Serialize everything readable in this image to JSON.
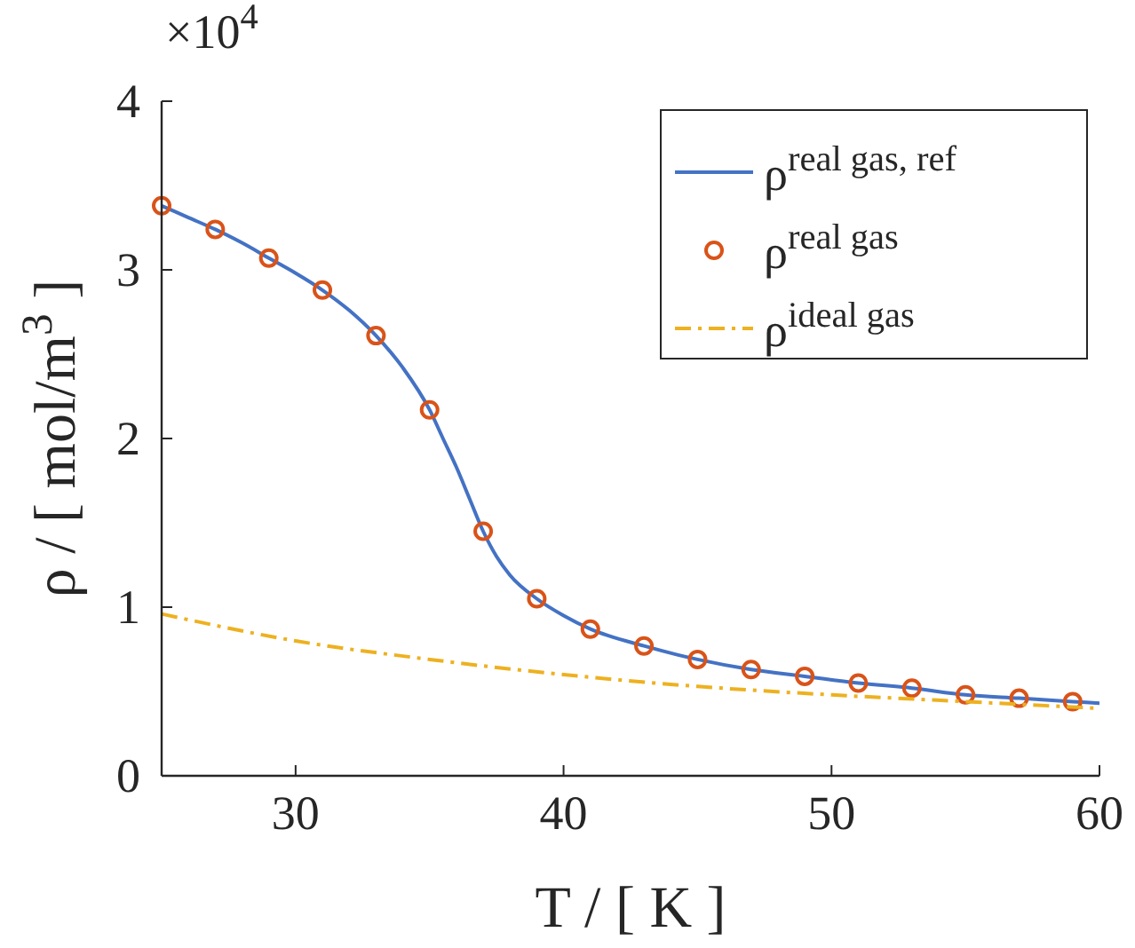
{
  "chart_data": {
    "type": "line",
    "xlabel": "T / [ K ]",
    "ylabel": "ρ / [ mol/m$^{3}$ ]",
    "annotations": [
      "×10$^{4}$"
    ],
    "xlim": [
      25,
      60
    ],
    "xticks": [
      30,
      40,
      50,
      60
    ],
    "ylim": [
      0,
      4
    ],
    "yticks": [
      0,
      1,
      2,
      3,
      4
    ],
    "grid": false,
    "legend": "top right",
    "series": [
      {
        "name": "ρ$^{real gas, ref}$",
        "color": "#4472c4",
        "line_style": "solid",
        "x": [
          25,
          26,
          27,
          28,
          29,
          30,
          31,
          32,
          33,
          34,
          35,
          35.5,
          36,
          36.5,
          37,
          37.5,
          38,
          39,
          40,
          41,
          43,
          45,
          47,
          49,
          51,
          53,
          55,
          57,
          59,
          60
        ],
        "values": [
          3.38,
          3.31,
          3.24,
          3.16,
          3.07,
          2.98,
          2.88,
          2.76,
          2.61,
          2.42,
          2.17,
          2.0,
          1.83,
          1.64,
          1.45,
          1.3,
          1.19,
          1.05,
          0.95,
          0.87,
          0.77,
          0.69,
          0.63,
          0.59,
          0.55,
          0.52,
          0.48,
          0.46,
          0.44,
          0.43
        ]
      },
      {
        "name": "ρ$^{real gas}$",
        "type": "scatter",
        "color": "#d95319",
        "marker": "circle",
        "x": [
          25,
          27,
          29,
          31,
          33,
          35,
          37,
          39,
          41,
          43,
          45,
          47,
          49,
          51,
          53,
          55,
          57,
          59
        ],
        "values": [
          3.38,
          3.24,
          3.07,
          2.88,
          2.61,
          2.17,
          1.45,
          1.05,
          0.87,
          0.77,
          0.69,
          0.63,
          0.59,
          0.55,
          0.52,
          0.48,
          0.46,
          0.44
        ]
      },
      {
        "name": "ρ$^{ideal gas}$",
        "color": "#edb120",
        "line_style": "dashed",
        "x": [
          25,
          30,
          35,
          40,
          45,
          50,
          55,
          60
        ],
        "values": [
          0.96,
          0.8,
          0.69,
          0.6,
          0.53,
          0.48,
          0.44,
          0.4
        ]
      }
    ]
  }
}
